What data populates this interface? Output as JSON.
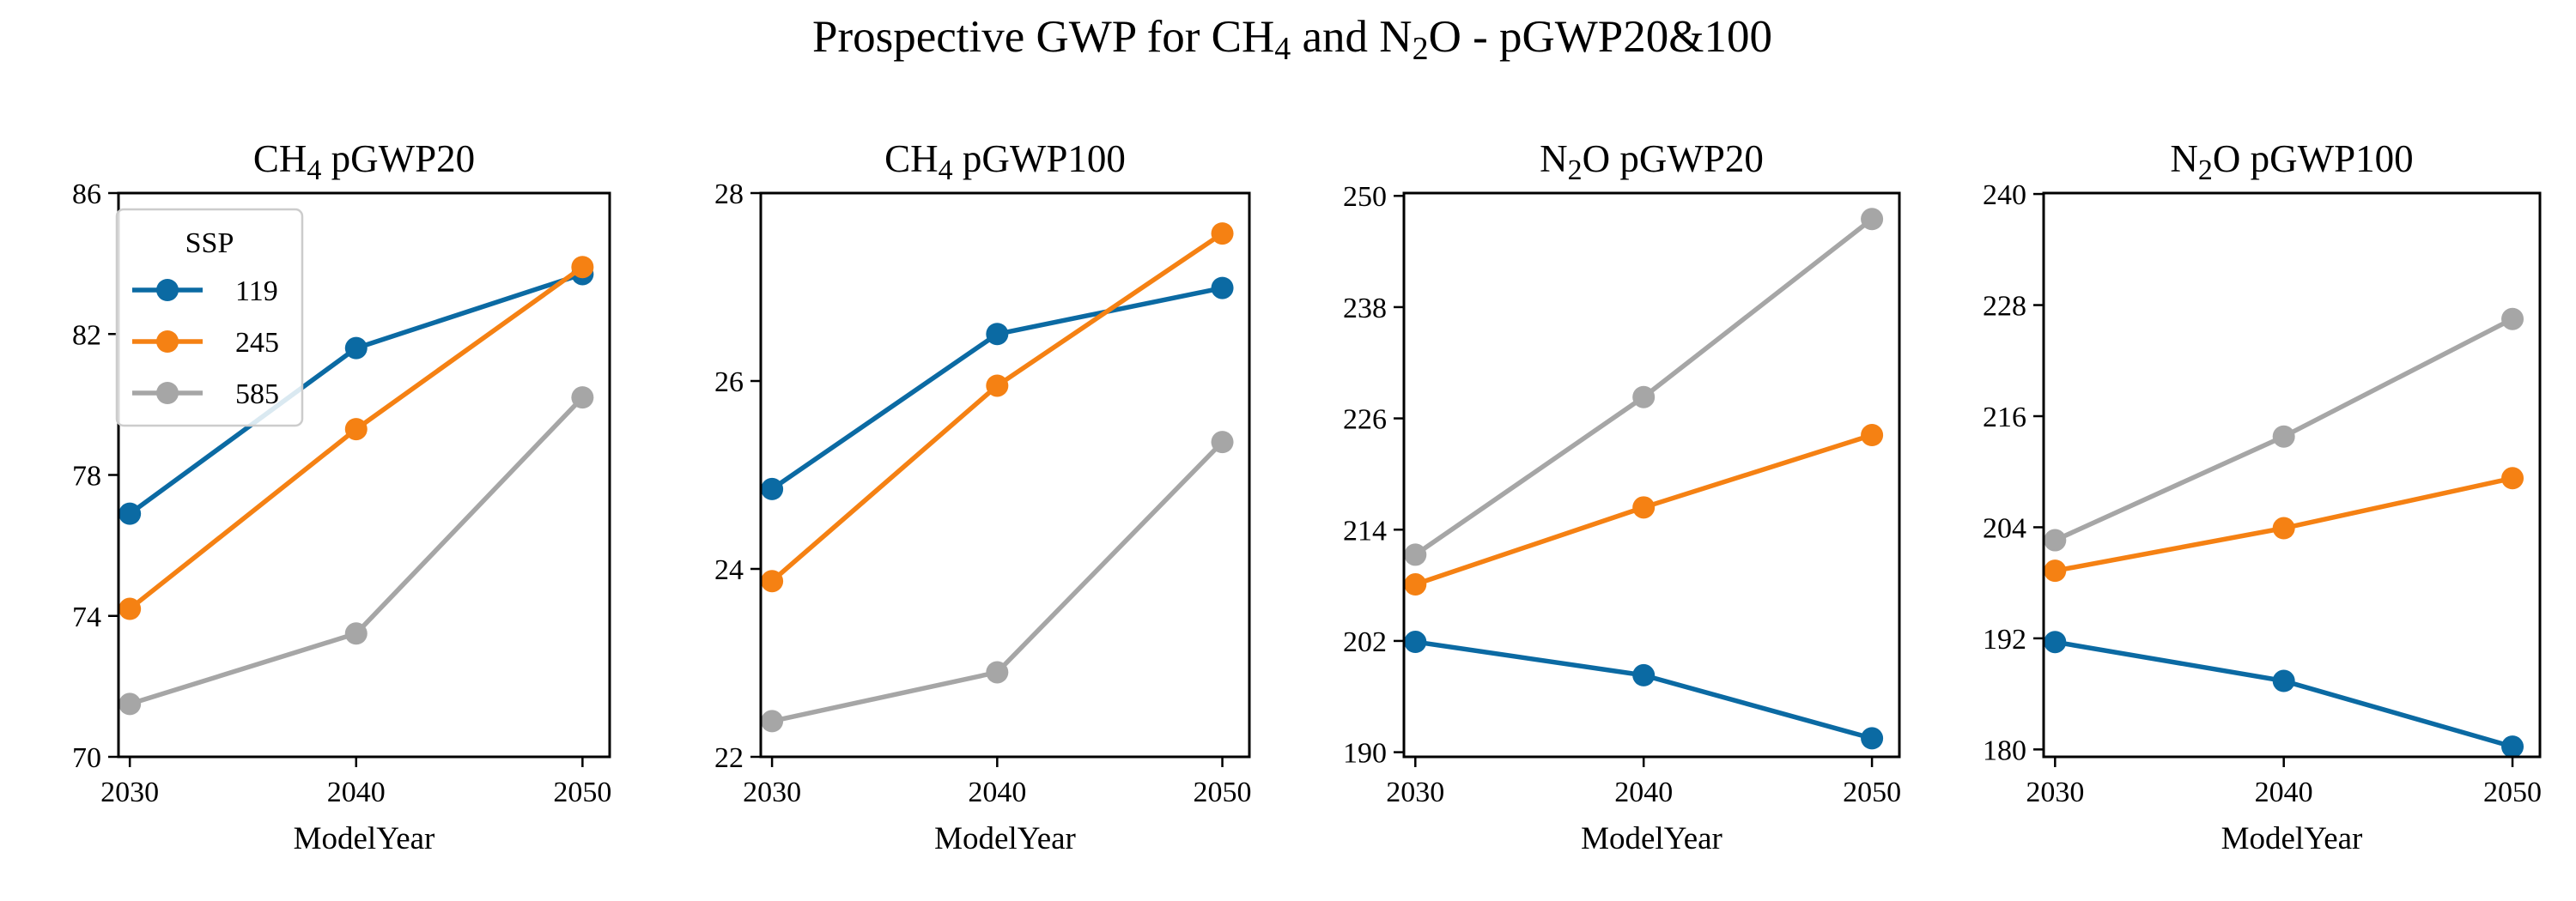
{
  "figure": {
    "title_parts": [
      "Prospective GWP for CH",
      "4",
      " and N",
      "2",
      "O - pGWP20&100"
    ]
  },
  "legend": {
    "title": "SSP"
  },
  "colors": {
    "119": "#0b6aa3",
    "245": "#f58113",
    "585": "#a6a6a6"
  },
  "chart_data": [
    {
      "type": "line",
      "title_parts": [
        "CH",
        "4",
        " pGWP20"
      ],
      "xlabel": "ModelYear",
      "ylabel": "",
      "x": [
        2030,
        2040,
        2050
      ],
      "xticks": [
        "2030",
        "2040",
        "2050"
      ],
      "xlim": [
        2029.5,
        2051.2
      ],
      "yticks": [
        "70",
        "74",
        "78",
        "82",
        "86"
      ],
      "ylim": [
        70,
        86
      ],
      "legend": "top-left",
      "series": [
        {
          "name": "119",
          "values": [
            76.9,
            81.6,
            83.7
          ]
        },
        {
          "name": "245",
          "values": [
            74.2,
            79.3,
            83.9
          ]
        },
        {
          "name": "585",
          "values": [
            71.5,
            73.5,
            80.2
          ]
        }
      ]
    },
    {
      "type": "line",
      "title_parts": [
        "CH",
        "4",
        " pGWP100"
      ],
      "xlabel": "ModelYear",
      "ylabel": "",
      "x": [
        2030,
        2040,
        2050
      ],
      "xticks": [
        "2030",
        "2040",
        "2050"
      ],
      "xlim": [
        2029.5,
        2051.2
      ],
      "yticks": [
        "22",
        "24",
        "26",
        "28"
      ],
      "ylim": [
        22,
        28
      ],
      "series": [
        {
          "name": "119",
          "values": [
            24.85,
            26.5,
            26.99
          ]
        },
        {
          "name": "245",
          "values": [
            23.87,
            25.95,
            27.57
          ]
        },
        {
          "name": "585",
          "values": [
            22.38,
            22.9,
            25.35
          ]
        }
      ]
    },
    {
      "type": "line",
      "title_parts": [
        "N",
        "2",
        "O pGWP20"
      ],
      "xlabel": "ModelYear",
      "ylabel": "",
      "x": [
        2030,
        2040,
        2050
      ],
      "xticks": [
        "2030",
        "2040",
        "2050"
      ],
      "xlim": [
        2029.5,
        2051.2
      ],
      "yticks": [
        "190",
        "202",
        "214",
        "226",
        "238",
        "250"
      ],
      "ylim": [
        189.5,
        250.3
      ],
      "series": [
        {
          "name": "119",
          "values": [
            201.9,
            198.3,
            191.5
          ]
        },
        {
          "name": "245",
          "values": [
            208.1,
            216.4,
            224.2
          ]
        },
        {
          "name": "585",
          "values": [
            211.3,
            228.3,
            247.5
          ]
        }
      ]
    },
    {
      "type": "line",
      "title_parts": [
        "N",
        "2",
        "O pGWP100"
      ],
      "xlabel": "ModelYear",
      "ylabel": "",
      "x": [
        2030,
        2040,
        2050
      ],
      "xticks": [
        "2030",
        "2040",
        "2050"
      ],
      "xlim": [
        2029.5,
        2051.2
      ],
      "yticks": [
        "180",
        "192",
        "204",
        "216",
        "228",
        "240"
      ],
      "ylim": [
        179.2,
        240.1
      ],
      "series": [
        {
          "name": "119",
          "values": [
            191.6,
            187.4,
            180.3
          ]
        },
        {
          "name": "245",
          "values": [
            199.3,
            203.9,
            209.3
          ]
        },
        {
          "name": "585",
          "values": [
            202.6,
            213.8,
            226.5
          ]
        }
      ]
    }
  ]
}
